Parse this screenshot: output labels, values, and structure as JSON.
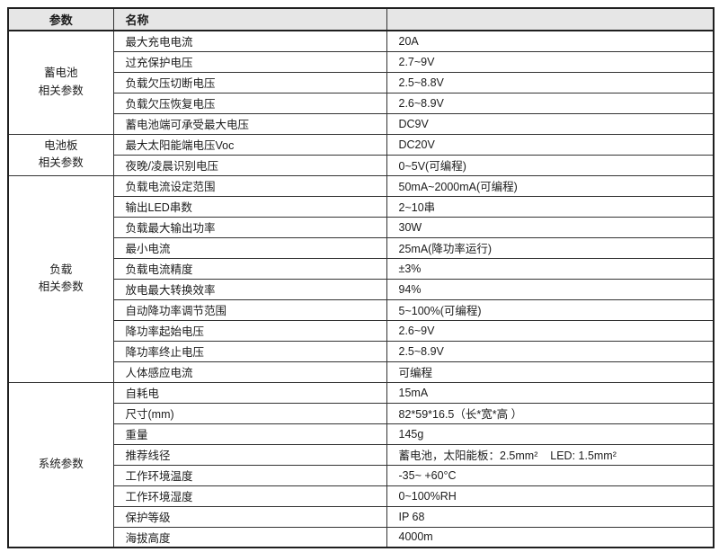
{
  "header": {
    "param": "参数",
    "name": "名称",
    "value": ""
  },
  "sections": [
    {
      "group_lines": [
        "蓄电池",
        "相关参数"
      ],
      "rows": [
        {
          "name": "最大充电电流",
          "value": "20A"
        },
        {
          "name": "过充保护电压",
          "value": "2.7~9V"
        },
        {
          "name": "负载欠压切断电压",
          "value": "2.5~8.8V"
        },
        {
          "name": "负载欠压恢复电压",
          "value": "2.6~8.9V"
        },
        {
          "name": "蓄电池端可承受最大电压",
          "value": "DC9V"
        }
      ]
    },
    {
      "group_lines": [
        "电池板",
        "相关参数"
      ],
      "rows": [
        {
          "name": "最大太阳能端电压Voc",
          "value": "DC20V"
        },
        {
          "name": "夜晚/凌晨识别电压",
          "value": "0~5V(可编程)"
        }
      ]
    },
    {
      "group_lines": [
        "负载",
        "相关参数"
      ],
      "rows": [
        {
          "name": "负载电流设定范围",
          "value": "50mA~2000mA(可编程)"
        },
        {
          "name": "输出LED串数",
          "value": "2~10串"
        },
        {
          "name": "负载最大输出功率",
          "value": "30W"
        },
        {
          "name": "最小电流",
          "value": "25mA(降功率运行)"
        },
        {
          "name": "负载电流精度",
          "value": "±3%"
        },
        {
          "name": "放电最大转换效率",
          "value": "94%"
        },
        {
          "name": "自动降功率调节范围",
          "value": "5~100%(可编程)"
        },
        {
          "name": "降功率起始电压",
          "value": "2.6~9V"
        },
        {
          "name": "降功率终止电压",
          "value": "2.5~8.9V"
        },
        {
          "name": "人体感应电流",
          "value": "可编程"
        }
      ]
    },
    {
      "group_lines": [
        "系统参数"
      ],
      "rows": [
        {
          "name": "自耗电",
          "value": "15mA"
        },
        {
          "name": "尺寸(mm)",
          "value": "82*59*16.5（长*宽*高 ）"
        },
        {
          "name": "重量",
          "value": "145g"
        },
        {
          "name": "推荐线径",
          "value": "蓄电池，太阳能板：2.5mm²    LED: 1.5mm²"
        },
        {
          "name": "工作环境温度",
          "value": "-35~ +60°C"
        },
        {
          "name": "工作环境湿度",
          "value": "0~100%RH"
        },
        {
          "name": "保护等级",
          "value": "IP 68"
        },
        {
          "name": "海拔高度",
          "value": "4000m"
        }
      ]
    }
  ],
  "colors": {
    "header_bg": "#e6e6e6",
    "border_outer": "#1f1f1f",
    "border_inner": "#333333",
    "text": "#1c1c1c"
  }
}
